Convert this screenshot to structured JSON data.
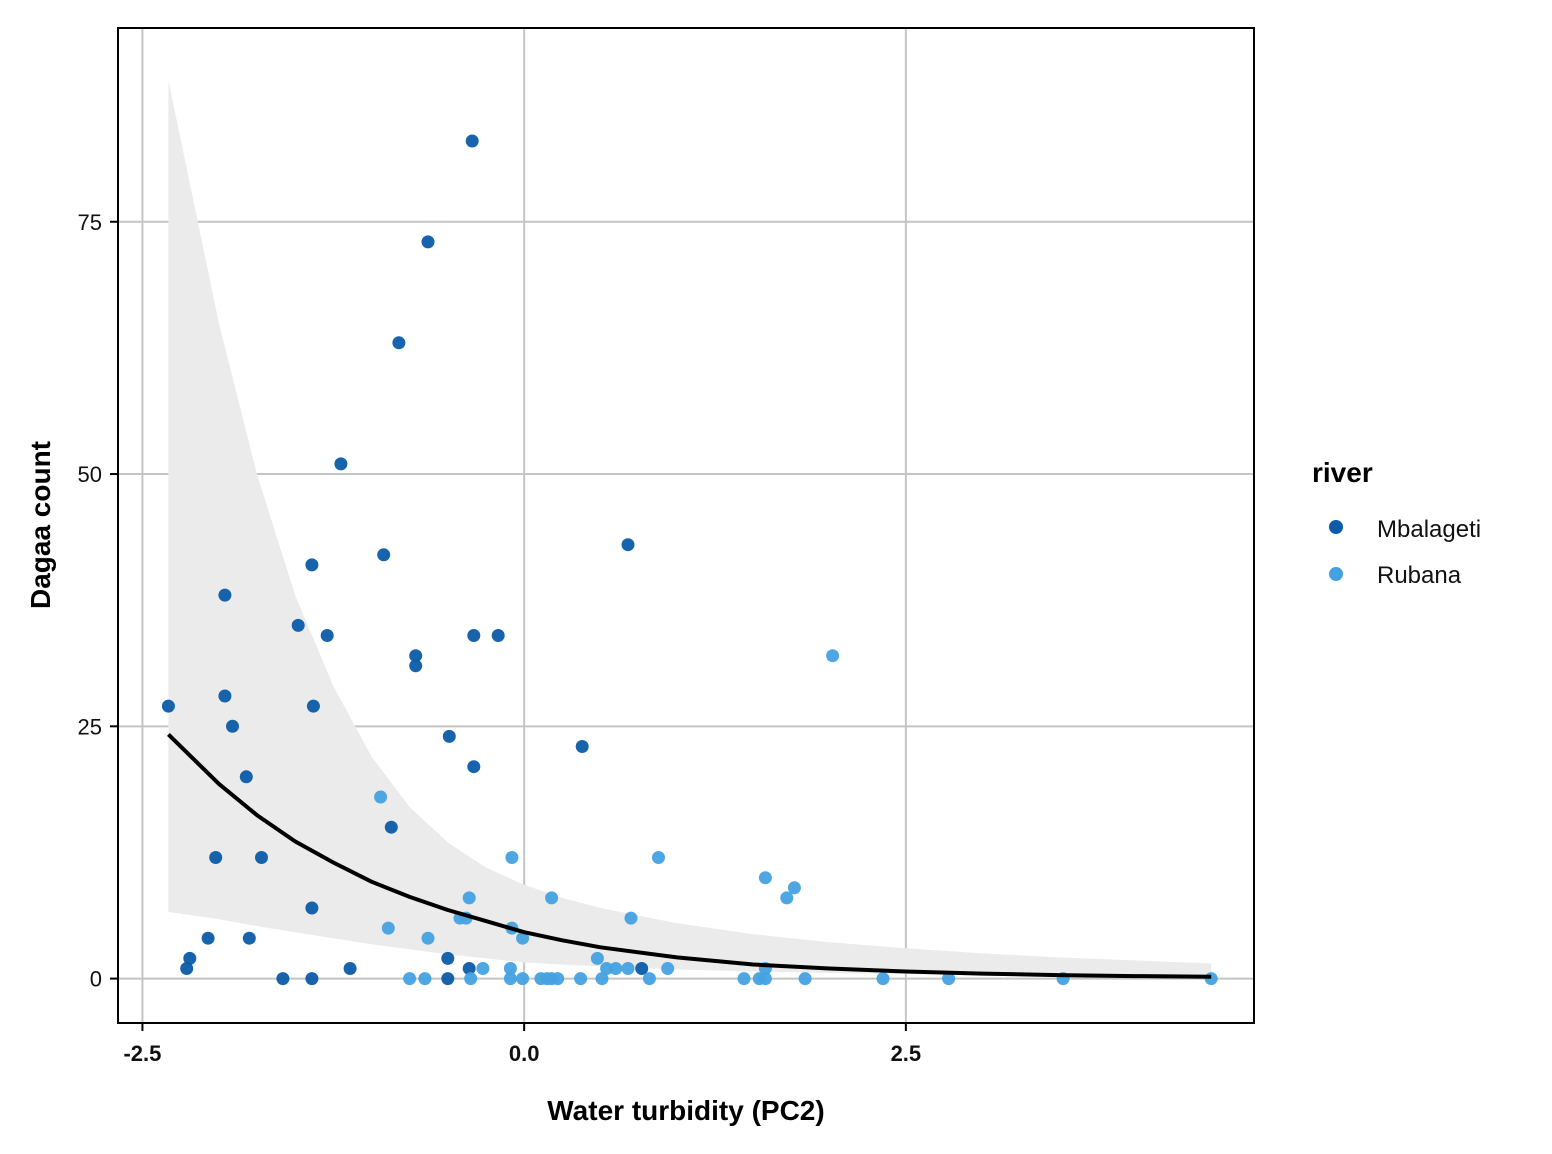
{
  "chart_data": {
    "type": "scatter",
    "xlabel": "Water turbidity (PC2)",
    "ylabel": "Dagaa count",
    "xlim": [
      -2.66,
      4.78
    ],
    "ylim": [
      -4.4,
      94.2
    ],
    "x_ticks": [
      -2.5,
      0.0,
      2.5
    ],
    "x_tick_labels": [
      "-2.5",
      "0.0",
      "2.5"
    ],
    "y_ticks": [
      0,
      25,
      50,
      75
    ],
    "y_tick_labels": [
      "0",
      "25",
      "50",
      "75"
    ],
    "grid": true,
    "legend": {
      "title": "river",
      "placement": "right",
      "entries": [
        {
          "name": "Mbalageti",
          "color": "#0B5CA8"
        },
        {
          "name": "Rubana",
          "color": "#44A2E0"
        }
      ]
    },
    "series": [
      {
        "name": "Mbalageti",
        "color": "#0B5CA8",
        "points": [
          [
            -2.33,
            27
          ],
          [
            -1.96,
            38
          ],
          [
            -1.96,
            28
          ],
          [
            -1.91,
            25
          ],
          [
            -1.82,
            20
          ],
          [
            -2.02,
            12
          ],
          [
            -1.72,
            12
          ],
          [
            -1.48,
            35
          ],
          [
            -1.39,
            41
          ],
          [
            -1.38,
            27
          ],
          [
            -1.29,
            34
          ],
          [
            -1.2,
            51
          ],
          [
            -1.39,
            7
          ],
          [
            -0.92,
            42
          ],
          [
            -0.82,
            63
          ],
          [
            -0.71,
            32
          ],
          [
            -0.71,
            31
          ],
          [
            -0.63,
            73
          ],
          [
            -0.87,
            15
          ],
          [
            -0.34,
            83
          ],
          [
            -0.33,
            34
          ],
          [
            -0.17,
            34
          ],
          [
            -0.49,
            24
          ],
          [
            -0.33,
            21
          ],
          [
            0.38,
            23
          ],
          [
            0.68,
            43
          ],
          [
            -2.19,
            2
          ],
          [
            -2.21,
            1
          ],
          [
            -2.07,
            4
          ],
          [
            -1.8,
            4
          ],
          [
            -1.58,
            0
          ],
          [
            -1.39,
            0
          ],
          [
            -1.14,
            1
          ],
          [
            -0.5,
            2
          ],
          [
            -0.5,
            0
          ],
          [
            0.77,
            1
          ],
          [
            -0.36,
            1
          ]
        ]
      },
      {
        "name": "Rubana",
        "color": "#44A2E0",
        "points": [
          [
            -0.94,
            18
          ],
          [
            -0.89,
            5
          ],
          [
            -0.63,
            4
          ],
          [
            -0.42,
            6
          ],
          [
            -0.38,
            6
          ],
          [
            -0.36,
            8
          ],
          [
            -0.08,
            12
          ],
          [
            -0.08,
            5
          ],
          [
            -0.01,
            4
          ],
          [
            0.18,
            8
          ],
          [
            0.88,
            12
          ],
          [
            0.7,
            6
          ],
          [
            1.58,
            10
          ],
          [
            1.77,
            9
          ],
          [
            1.72,
            8
          ],
          [
            2.02,
            32
          ],
          [
            0.48,
            2
          ],
          [
            0.54,
            1
          ],
          [
            0.6,
            1
          ],
          [
            0.68,
            1
          ],
          [
            0.94,
            1
          ],
          [
            1.58,
            1
          ],
          [
            -0.27,
            1
          ],
          [
            -0.09,
            1
          ],
          [
            -0.75,
            0
          ],
          [
            -0.65,
            0
          ],
          [
            -0.35,
            0
          ],
          [
            -0.09,
            0
          ],
          [
            -0.01,
            0
          ],
          [
            0.11,
            0
          ],
          [
            0.15,
            0
          ],
          [
            0.18,
            0
          ],
          [
            0.22,
            0
          ],
          [
            0.37,
            0
          ],
          [
            0.51,
            0
          ],
          [
            0.82,
            0
          ],
          [
            1.44,
            0
          ],
          [
            1.54,
            0
          ],
          [
            1.58,
            0
          ],
          [
            1.84,
            0
          ],
          [
            2.35,
            0
          ],
          [
            2.78,
            0
          ],
          [
            3.53,
            0
          ],
          [
            4.5,
            0
          ]
        ]
      },
      {
        "name": "fit",
        "type": "line",
        "color": "#000000",
        "x": [
          -2.33,
          -2.0,
          -1.75,
          -1.5,
          -1.25,
          -1.0,
          -0.75,
          -0.5,
          -0.25,
          0.0,
          0.25,
          0.5,
          1.0,
          1.5,
          2.0,
          2.5,
          3.0,
          3.5,
          4.0,
          4.5
        ],
        "y": [
          24.2,
          19.3,
          16.2,
          13.6,
          11.5,
          9.6,
          8.1,
          6.8,
          5.7,
          4.6,
          3.8,
          3.1,
          2.1,
          1.4,
          1.0,
          0.7,
          0.5,
          0.35,
          0.25,
          0.18
        ],
        "ci_lower": [
          6.6,
          5.9,
          5.2,
          4.6,
          4.0,
          3.4,
          2.9,
          2.4,
          2.0,
          1.6,
          1.4,
          1.2,
          0.9,
          0.7,
          0.55,
          0.45,
          0.35,
          0.25,
          0.18,
          0.12
        ],
        "ci_upper": [
          89.0,
          65.0,
          50.0,
          38.0,
          29.0,
          22.0,
          17.0,
          13.5,
          11.0,
          9.3,
          8.0,
          7.0,
          5.5,
          4.4,
          3.6,
          3.0,
          2.5,
          2.1,
          1.8,
          1.5
        ]
      }
    ]
  }
}
